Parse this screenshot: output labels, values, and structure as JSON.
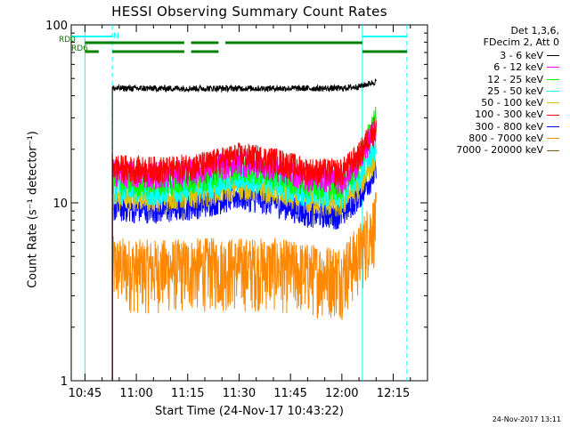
{
  "chart_data": {
    "type": "line",
    "title": "HESSI Observing Summary Count Rates",
    "xlabel": "Start Time (24-Nov-17 10:43:22)",
    "ylabel": "Count Rate (s⁻¹ detector⁻¹)",
    "y_scale": "log",
    "ylim": [
      1,
      100
    ],
    "y_ticks": [
      1,
      10,
      100
    ],
    "x_range": [
      "10:41",
      "12:25"
    ],
    "x_tick_labels": [
      "10:45",
      "11:00",
      "11:15",
      "11:30",
      "11:45",
      "12:00",
      "12:15"
    ],
    "x_tick_minutes": [
      645,
      660,
      675,
      690,
      705,
      720,
      735
    ],
    "grid": false,
    "legend_position": "top-right outside",
    "legend_header": [
      "Det 1,3,6,",
      "FDecim 2, Att 0"
    ],
    "series": [
      {
        "name": "3 - 6 keV",
        "color": "#000000",
        "x": [
          "10:53",
          "11:00",
          "11:10",
          "11:20",
          "11:30",
          "11:40",
          "11:50",
          "12:00",
          "12:05",
          "12:10"
        ],
        "y": [
          44,
          44,
          44,
          44,
          44,
          44,
          44,
          44,
          45,
          48
        ]
      },
      {
        "name": "6 - 12 keV",
        "color": "#ff00ff",
        "x": [
          "10:53",
          "11:00",
          "11:10",
          "11:20",
          "11:30",
          "11:40",
          "11:50",
          "12:00",
          "12:05",
          "12:10"
        ],
        "y": [
          15,
          14.5,
          14.5,
          15.5,
          17,
          16,
          14,
          13.5,
          17,
          26
        ]
      },
      {
        "name": "12 - 25 keV",
        "color": "#00ff00",
        "x": [
          "10:53",
          "11:00",
          "11:10",
          "11:20",
          "11:30",
          "11:40",
          "11:50",
          "12:00",
          "12:05",
          "12:10"
        ],
        "y": [
          13.5,
          13,
          13.2,
          14,
          16,
          14.5,
          12.8,
          12.5,
          16.5,
          30
        ]
      },
      {
        "name": "25 - 50 keV",
        "color": "#00ffff",
        "x": [
          "10:53",
          "11:00",
          "11:10",
          "11:20",
          "11:30",
          "11:40",
          "11:50",
          "12:00",
          "12:05",
          "12:10"
        ],
        "y": [
          12,
          11.8,
          11.8,
          12.5,
          14,
          13,
          11.3,
          11,
          14,
          21
        ]
      },
      {
        "name": "50 - 100 keV",
        "color": "#e0c000",
        "x": [
          "10:53",
          "11:00",
          "11:10",
          "11:20",
          "11:30",
          "11:40",
          "11:50",
          "12:00",
          "12:05",
          "12:10"
        ],
        "y": [
          11,
          10.8,
          10.8,
          11.5,
          12.5,
          11.8,
          10.3,
          10,
          12.5,
          18
        ]
      },
      {
        "name": "100 - 300 keV",
        "color": "#ff0000",
        "x": [
          "10:53",
          "11:00",
          "11:10",
          "11:20",
          "11:30",
          "11:40",
          "11:50",
          "12:00",
          "12:05",
          "12:10"
        ],
        "y": [
          16,
          15.5,
          15.5,
          16.5,
          18.5,
          17.5,
          15.2,
          15,
          18.5,
          27
        ]
      },
      {
        "name": "300 - 800 keV",
        "color": "#0000ff",
        "x": [
          "10:53",
          "11:00",
          "11:10",
          "11:20",
          "11:30",
          "11:40",
          "11:50",
          "12:00",
          "12:05",
          "12:10"
        ],
        "y": [
          9.5,
          9.3,
          9.3,
          10,
          11,
          10.2,
          8.8,
          8.6,
          11,
          15
        ]
      },
      {
        "name": "800 - 7000 keV",
        "color": "#ff8800",
        "x": [
          "10:53",
          "11:00",
          "11:10",
          "11:20",
          "11:30",
          "11:40",
          "11:50",
          "12:00",
          "12:05",
          "12:10"
        ],
        "y": [
          4.5,
          4.3,
          4.3,
          4.4,
          4.4,
          4.4,
          4.1,
          4,
          5.2,
          8
        ]
      },
      {
        "name": "7000 - 20000 keV",
        "color": "#806000",
        "x": [],
        "y": []
      }
    ],
    "markers": {
      "cyan_solid_x": [
        "10:45",
        "12:06"
      ],
      "cyan_dashed_x": [
        "10:53",
        "12:19"
      ],
      "flags": [
        {
          "label": "N",
          "color": "#00ffff",
          "segments": [
            [
              "10:41",
              "10:53"
            ],
            [
              "12:06",
              "12:19"
            ]
          ]
        },
        {
          "label": "RD0",
          "color": "#008000",
          "segments": [
            [
              "10:45",
              "11:14"
            ],
            [
              "11:16",
              "11:24"
            ],
            [
              "11:26",
              "12:06"
            ]
          ]
        },
        {
          "label": "RD6",
          "color": "#008000",
          "segments": [
            [
              "10:45",
              "10:49"
            ],
            [
              "10:53",
              "11:14"
            ],
            [
              "11:16",
              "11:24"
            ],
            [
              "12:06",
              "12:19"
            ]
          ]
        }
      ]
    }
  },
  "stamp": "24-Nov-2017 13:11"
}
